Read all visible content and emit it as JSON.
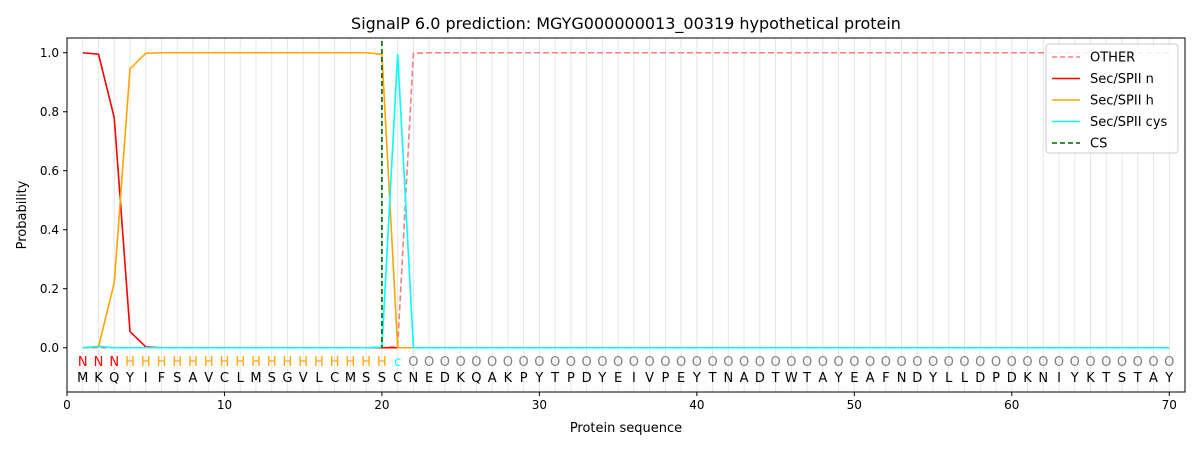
{
  "chart_data": {
    "type": "line",
    "title": "SignalP 6.0 prediction: MGYG000000013_00319 hypothetical protein",
    "xlabel": "Protein sequence",
    "ylabel": "Probability",
    "xlim": [
      0,
      71
    ],
    "ylim": [
      -0.15,
      1.05
    ],
    "xticks": [
      0,
      10,
      20,
      30,
      40,
      50,
      60,
      70
    ],
    "yticks": [
      "0.0",
      "0.2",
      "0.4",
      "0.6",
      "0.8",
      "1.0"
    ],
    "legend_position": "top-right",
    "sequence": "MKQYIFSAVCLMSGVLCMSSCNEDKQAKPYTPDYEIVPEYTNADTWTAYEAFNDYLLDPDKNIYKTSTAY",
    "labels": "NNNHHHHHHHHHHHHHHHHHcOOOOOOOOOOOOOOOOOOOOOOOOOOOOOOOOOOOOOOOOOOOOOOOOO",
    "label_colors": {
      "N": "#ff0000",
      "H": "#ffa500",
      "c": "#00ffff",
      "O": "#808080"
    },
    "cs_position": 20,
    "series": [
      {
        "name": "OTHER",
        "color": "#f08080",
        "dash": true,
        "values": {
          "start": [
            0,
            0,
            0,
            0,
            0,
            0,
            0,
            0,
            0,
            0,
            0,
            0,
            0,
            0,
            0,
            0,
            0,
            0,
            0,
            0,
            0.005,
            0.998
          ],
          "rest": 1.0
        }
      },
      {
        "name": "Sec/SPII n",
        "color": "#ff0000",
        "dash": false,
        "values": {
          "start": [
            1.0,
            0.995,
            0.78,
            0.055,
            0.003,
            0,
            0,
            0,
            0,
            0,
            0,
            0,
            0,
            0,
            0,
            0,
            0,
            0,
            0,
            0,
            0,
            0
          ],
          "rest": 0
        }
      },
      {
        "name": "Sec/SPII h",
        "color": "#ffa500",
        "dash": false,
        "values": {
          "start": [
            0,
            0.003,
            0.22,
            0.945,
            0.998,
            1,
            1,
            1,
            1,
            1,
            1,
            1,
            1,
            1,
            1,
            1,
            1,
            1,
            1,
            0.995,
            0.0,
            0
          ],
          "rest": 0
        }
      },
      {
        "name": "Sec/SPII cys",
        "color": "#00ffff",
        "dash": false,
        "values": {
          "start": [
            0,
            0.005,
            0,
            0,
            0,
            0,
            0,
            0,
            0,
            0,
            0,
            0,
            0,
            0,
            0,
            0,
            0,
            0,
            0,
            0.002,
            0.995,
            0
          ],
          "rest": 0
        }
      },
      {
        "name": "CS",
        "color": "#006400",
        "dash": true,
        "values": null
      }
    ]
  }
}
